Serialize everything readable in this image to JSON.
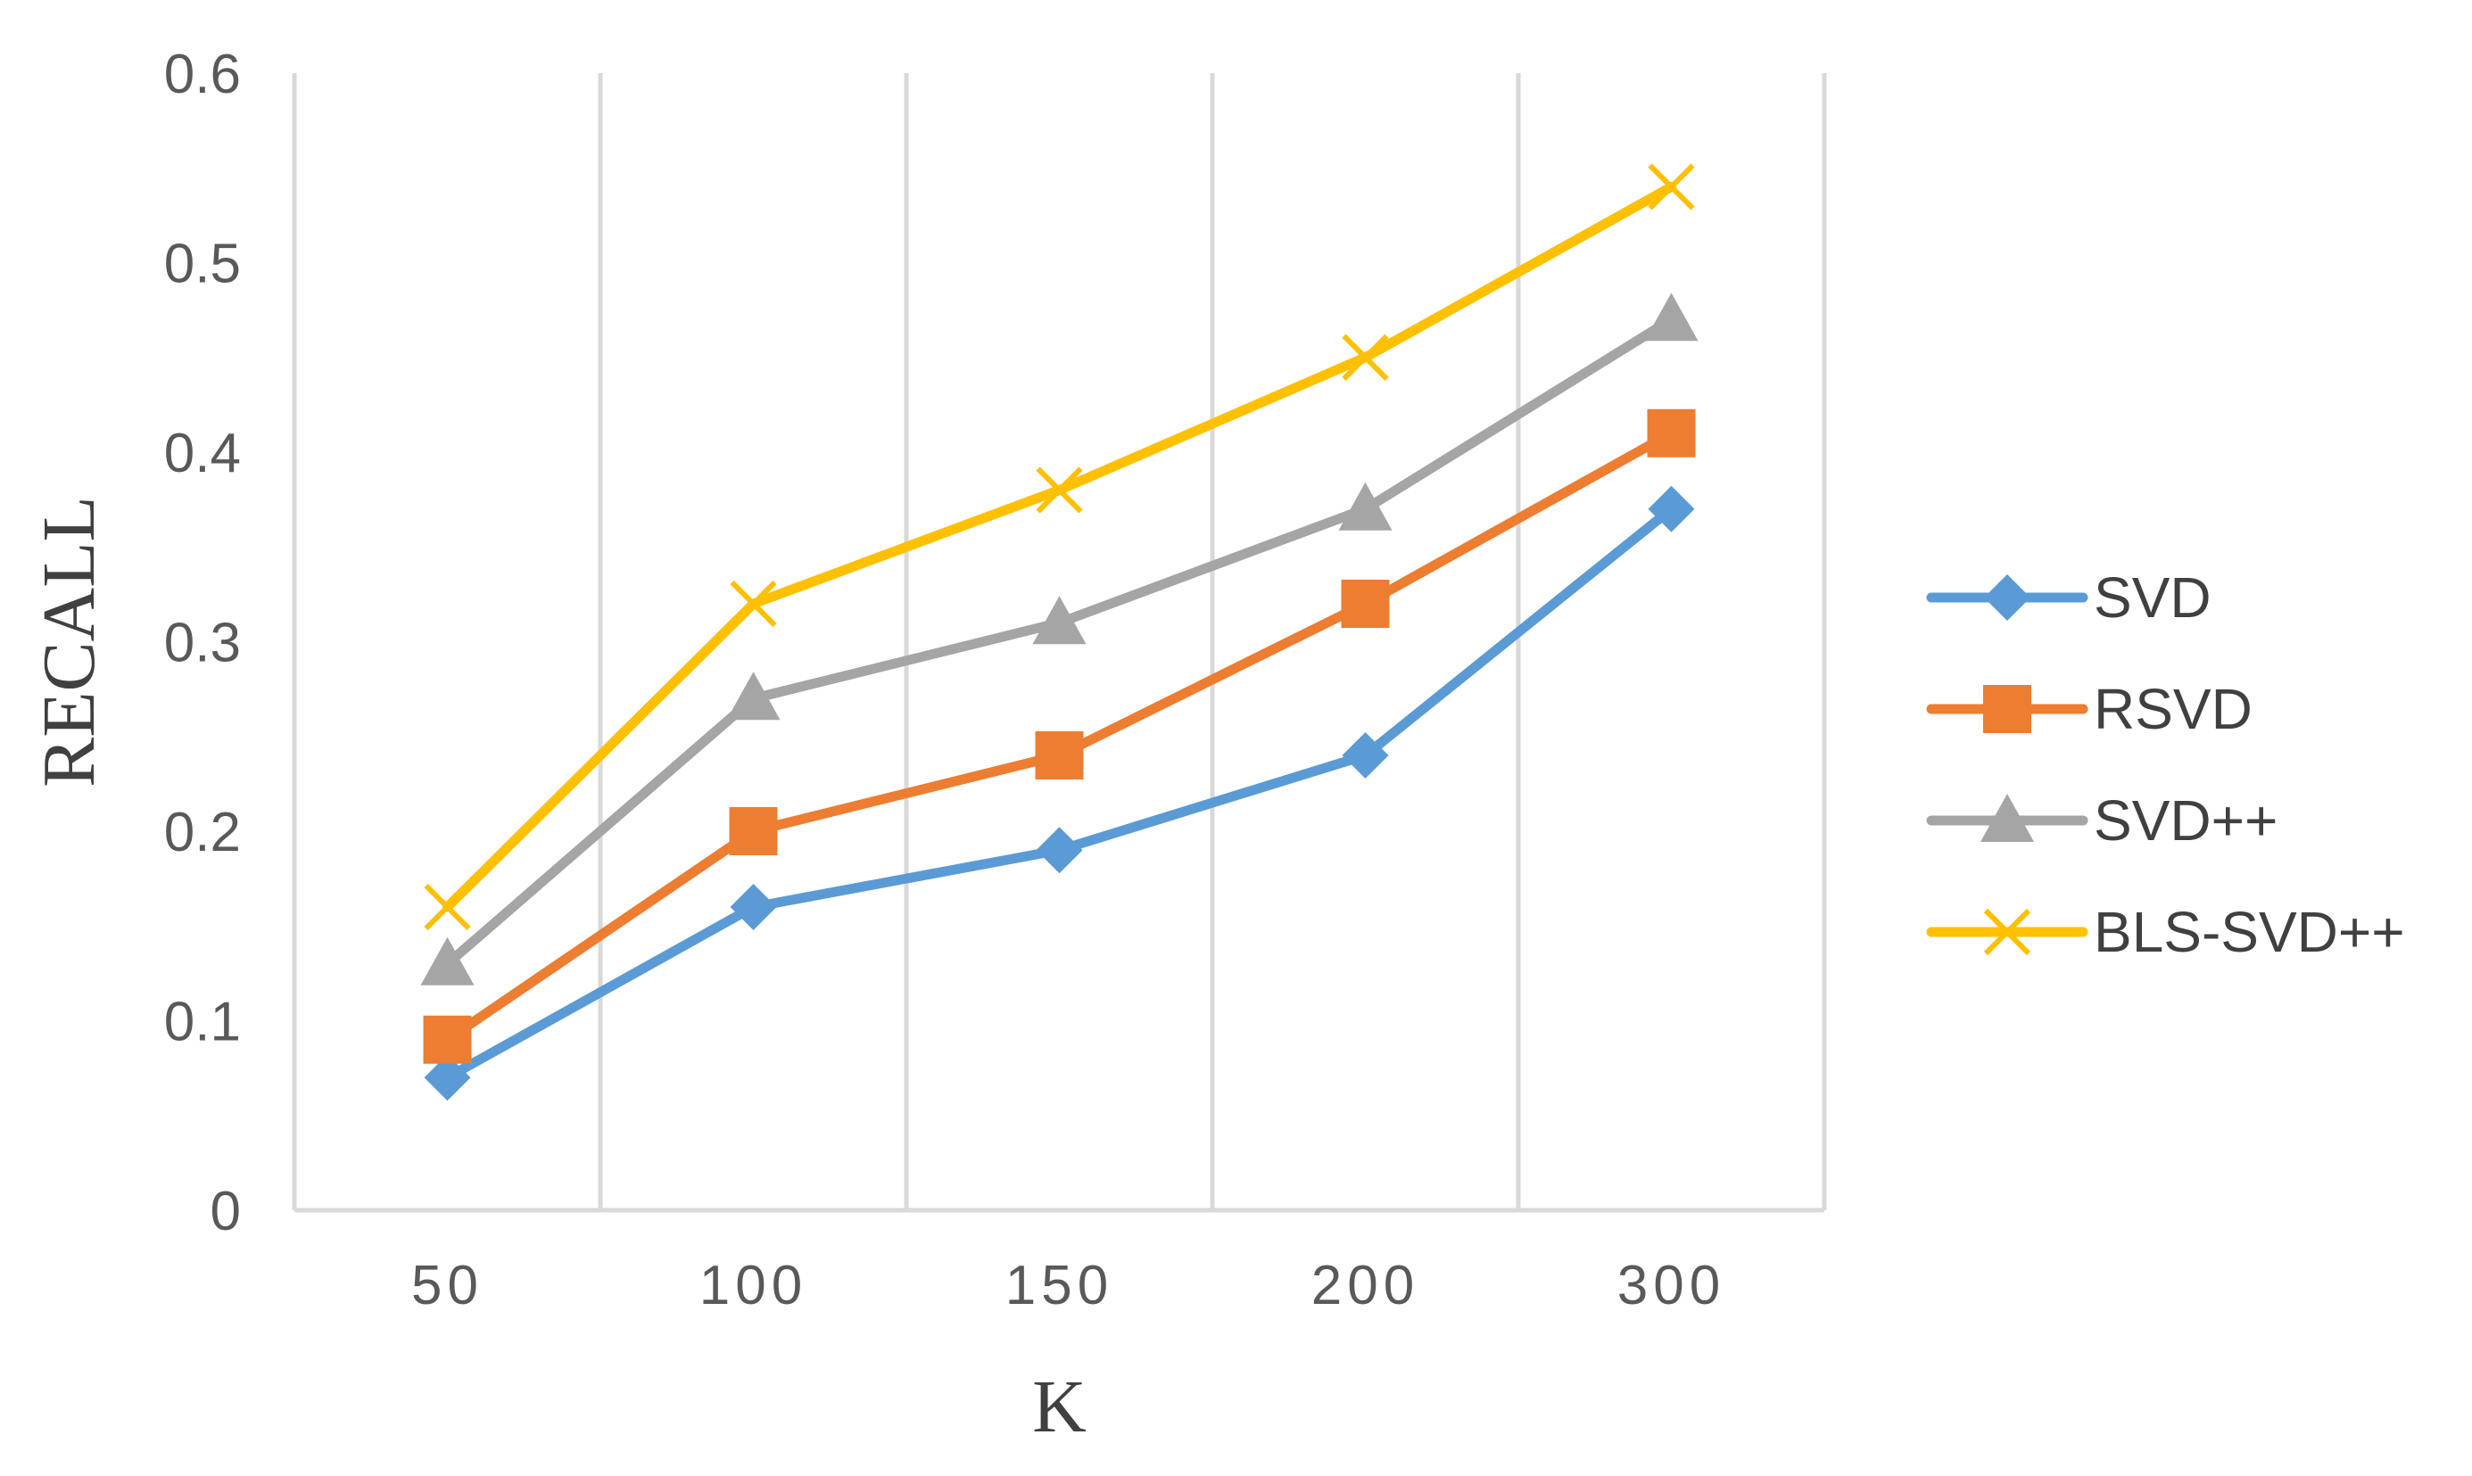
{
  "chart_data": {
    "type": "line",
    "categories": [
      "50",
      "100",
      "150",
      "200",
      "300"
    ],
    "series": [
      {
        "name": "SVD",
        "values": [
          0.07,
          0.16,
          0.19,
          0.24,
          0.37
        ],
        "color": "#5B9BD5",
        "marker": "diamond"
      },
      {
        "name": "RSVD",
        "values": [
          0.09,
          0.2,
          0.24,
          0.32,
          0.41
        ],
        "color": "#ED7D31",
        "marker": "square"
      },
      {
        "name": "SVD++",
        "values": [
          0.13,
          0.27,
          0.31,
          0.37,
          0.47
        ],
        "color": "#A5A5A5",
        "marker": "triangle"
      },
      {
        "name": "BLS-SVD++",
        "values": [
          0.16,
          0.32,
          0.38,
          0.45,
          0.54
        ],
        "color": "#FFC000",
        "marker": "x"
      }
    ],
    "title": "",
    "xlabel": "K",
    "ylabel": "RECALL",
    "ylim": [
      0,
      0.6
    ],
    "yticks": [
      "0",
      "0.1",
      "0.2",
      "0.3",
      "0.4",
      "0.5",
      "0.6"
    ],
    "grid": "vertical",
    "legend_position": "right"
  }
}
